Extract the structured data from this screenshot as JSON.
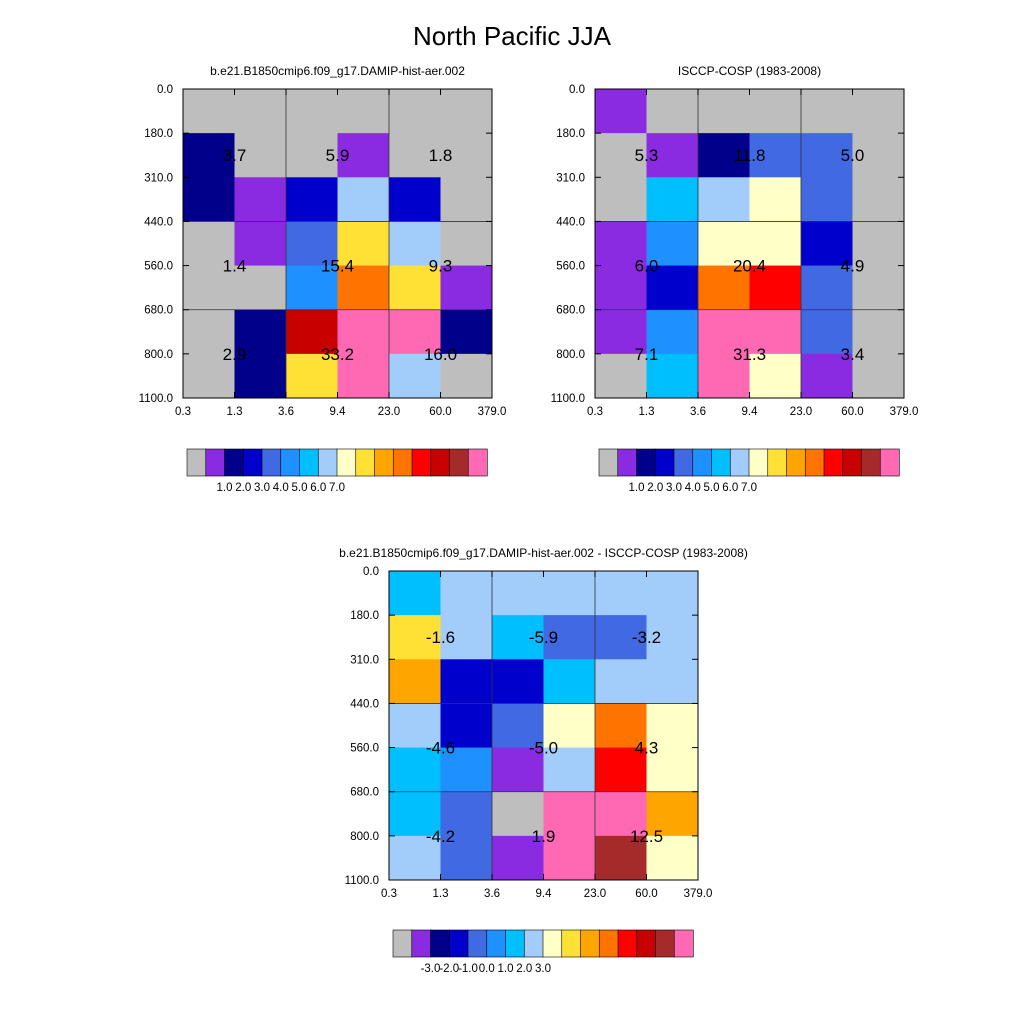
{
  "title": "North Pacific JJA",
  "chart_data": [
    {
      "type": "heatmap",
      "title": "b.e21.B1850cmip6.f09_g17.DAMIP-hist-aer.002",
      "x_edges": [
        "0.3",
        "1.3",
        "3.6",
        "9.4",
        "23.0",
        "60.0",
        "379.0"
      ],
      "y_edges": [
        "0.0",
        "180.0",
        "310.0",
        "440.0",
        "560.0",
        "680.0",
        "800.0",
        "1100.0"
      ],
      "cell_colors": [
        [
          "#bebebe",
          "#bebebe",
          "#bebebe",
          "#bebebe",
          "#bebebe",
          "#bebebe"
        ],
        [
          "#00008b",
          "#bebebe",
          "#bebebe",
          "#8a2be2",
          "#bebebe",
          "#bebebe"
        ],
        [
          "#00008b",
          "#8a2be2",
          "#0000cd",
          "#a2cdfa",
          "#0000cd",
          "#bebebe"
        ],
        [
          "#bebebe",
          "#8a2be2",
          "#4169e1",
          "#ffe135",
          "#a2cdfa",
          "#bebebe"
        ],
        [
          "#bebebe",
          "#bebebe",
          "#1e90ff",
          "#ff7400",
          "#ffe135",
          "#8a2be2"
        ],
        [
          "#bebebe",
          "#00008b",
          "#c80000",
          "#ff69b4",
          "#ff69b4",
          "#00008b"
        ],
        [
          "#bebebe",
          "#00008b",
          "#ffe135",
          "#ff69b4",
          "#a2cdfa",
          "#bebebe"
        ]
      ],
      "box_labels": [
        [
          "3.7",
          "5.9",
          "1.8"
        ],
        [
          "1.4",
          "15.4",
          "9.3"
        ],
        [
          "2.9",
          "33.2",
          "16.0"
        ]
      ],
      "colorbar": {
        "colors": [
          "#bebebe",
          "#8a2be2",
          "#00008b",
          "#0000cd",
          "#4169e1",
          "#1e90ff",
          "#00bfff",
          "#a2cdfa",
          "#ffffc8",
          "#ffe135",
          "#ffa500",
          "#ff7400",
          "#ff0000",
          "#c80000",
          "#a52a2a",
          "#ff69b4"
        ],
        "labels": [
          "1.0",
          "2.0",
          "3.0",
          "4.0",
          "5.0",
          "6.0",
          "7.0"
        ]
      }
    },
    {
      "type": "heatmap",
      "title": "ISCCP-COSP (1983-2008)",
      "x_edges": [
        "0.3",
        "1.3",
        "3.6",
        "9.4",
        "23.0",
        "60.0",
        "379.0"
      ],
      "y_edges": [
        "0.0",
        "180.0",
        "310.0",
        "440.0",
        "560.0",
        "680.0",
        "800.0",
        "1100.0"
      ],
      "cell_colors": [
        [
          "#8a2be2",
          "#bebebe",
          "#bebebe",
          "#bebebe",
          "#bebebe",
          "#bebebe"
        ],
        [
          "#bebebe",
          "#8a2be2",
          "#00008b",
          "#4169e1",
          "#4169e1",
          "#bebebe"
        ],
        [
          "#bebebe",
          "#00bfff",
          "#a2cdfa",
          "#ffffc8",
          "#4169e1",
          "#bebebe"
        ],
        [
          "#8a2be2",
          "#1e90ff",
          "#ffffc8",
          "#ffffc8",
          "#0000cd",
          "#bebebe"
        ],
        [
          "#8a2be2",
          "#0000cd",
          "#ff7400",
          "#ff0000",
          "#4169e1",
          "#bebebe"
        ],
        [
          "#8a2be2",
          "#1e90ff",
          "#ff69b4",
          "#ff69b4",
          "#4169e1",
          "#bebebe"
        ],
        [
          "#bebebe",
          "#00bfff",
          "#ff69b4",
          "#ffffc8",
          "#8a2be2",
          "#bebebe"
        ]
      ],
      "box_labels": [
        [
          "5.3",
          "11.8",
          "5.0"
        ],
        [
          "6.0",
          "20.4",
          "4.9"
        ],
        [
          "7.1",
          "31.3",
          "3.4"
        ]
      ],
      "colorbar": {
        "colors": [
          "#bebebe",
          "#8a2be2",
          "#00008b",
          "#0000cd",
          "#4169e1",
          "#1e90ff",
          "#00bfff",
          "#a2cdfa",
          "#ffffc8",
          "#ffe135",
          "#ffa500",
          "#ff7400",
          "#ff0000",
          "#c80000",
          "#a52a2a",
          "#ff69b4"
        ],
        "labels": [
          "1.0",
          "2.0",
          "3.0",
          "4.0",
          "5.0",
          "6.0",
          "7.0"
        ]
      }
    },
    {
      "type": "heatmap",
      "title": "b.e21.B1850cmip6.f09_g17.DAMIP-hist-aer.002 - ISCCP-COSP (1983-2008)",
      "x_edges": [
        "0.3",
        "1.3",
        "3.6",
        "9.4",
        "23.0",
        "60.0",
        "379.0"
      ],
      "y_edges": [
        "0.0",
        "180.0",
        "310.0",
        "440.0",
        "560.0",
        "680.0",
        "800.0",
        "1100.0"
      ],
      "cell_colors": [
        [
          "#00bfff",
          "#a2cdfa",
          "#a2cdfa",
          "#a2cdfa",
          "#a2cdfa",
          "#a2cdfa"
        ],
        [
          "#ffe135",
          "#a2cdfa",
          "#00bfff",
          "#4169e1",
          "#4169e1",
          "#a2cdfa"
        ],
        [
          "#ffa500",
          "#0000cd",
          "#0000cd",
          "#00bfff",
          "#a2cdfa",
          "#a2cdfa"
        ],
        [
          "#a2cdfa",
          "#0000cd",
          "#4169e1",
          "#ffffc8",
          "#ff7400",
          "#ffffc8"
        ],
        [
          "#00bfff",
          "#1e90ff",
          "#8a2be2",
          "#a2cdfa",
          "#ff0000",
          "#ffffc8"
        ],
        [
          "#00bfff",
          "#4169e1",
          "#bebebe",
          "#ff69b4",
          "#ff69b4",
          "#ffa500"
        ],
        [
          "#a2cdfa",
          "#4169e1",
          "#8a2be2",
          "#ff69b4",
          "#a52a2a",
          "#ffffc8"
        ]
      ],
      "box_labels": [
        [
          "-1.6",
          "-5.9",
          "-3.2"
        ],
        [
          "-4.6",
          "-5.0",
          "4.3"
        ],
        [
          "-4.2",
          "1.9",
          "12.5"
        ]
      ],
      "colorbar": {
        "colors": [
          "#bebebe",
          "#8a2be2",
          "#00008b",
          "#0000cd",
          "#4169e1",
          "#1e90ff",
          "#00bfff",
          "#a2cdfa",
          "#ffffc8",
          "#ffe135",
          "#ffa500",
          "#ff7400",
          "#ff0000",
          "#c80000",
          "#a52a2a",
          "#ff69b4"
        ],
        "labels": [
          "-3.0",
          "-2.0",
          "-1.0",
          "0.0",
          "1.0",
          "2.0",
          "3.0"
        ]
      }
    }
  ]
}
